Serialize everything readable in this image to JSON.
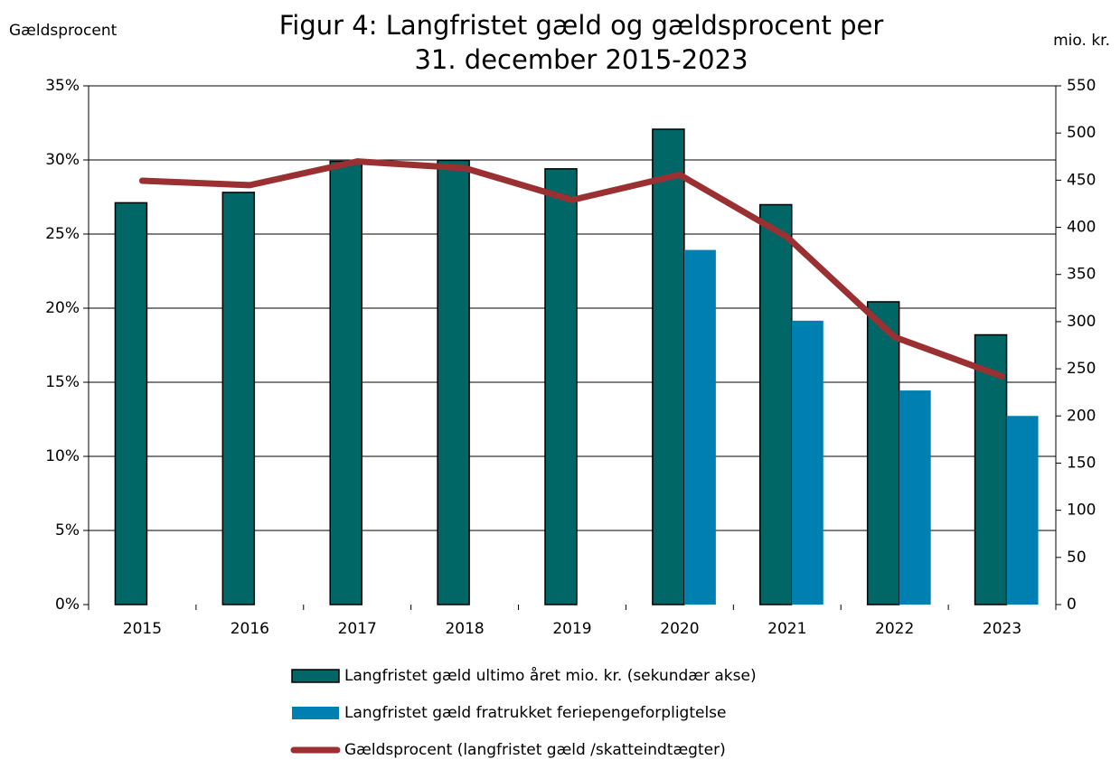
{
  "chart_data": {
    "type": "bar_line",
    "title": [
      "Figur 4: Langfristet gæld og gældsprocent per",
      "31. december 2015-2023"
    ],
    "y_label": "Gældsprocent",
    "y2_label": "mio. kr.",
    "categories": [
      "2015",
      "2016",
      "2017",
      "2018",
      "2019",
      "2020",
      "2021",
      "2022",
      "2023"
    ],
    "series": [
      {
        "name": "Langfristet gæld ultimo året mio. kr. (sekundær akse)",
        "type": "bar",
        "axis": "y2",
        "color": "#006666",
        "values": [
          426,
          437,
          470,
          471,
          462,
          504,
          424,
          321,
          286
        ]
      },
      {
        "name": "Langfristet gæld fratrukket feriepengeforpligtelse",
        "type": "bar",
        "axis": "y2",
        "color": "#0080b0",
        "values": [
          null,
          null,
          null,
          null,
          null,
          376,
          301,
          227,
          200
        ]
      },
      {
        "name": "Gældsprocent (langfristet gæld /skatteindtægter)",
        "type": "line",
        "axis": "y",
        "color": "#9b3033",
        "values": [
          28.6,
          28.3,
          29.9,
          29.45,
          27.3,
          29.0,
          24.8,
          18.05,
          15.4
        ]
      }
    ],
    "ylim": [
      0,
      35
    ],
    "yticks": [
      {
        "value": 0,
        "label": "0%"
      },
      {
        "value": 5,
        "label": "5%"
      },
      {
        "value": 10,
        "label": "10%"
      },
      {
        "value": 15,
        "label": "15%"
      },
      {
        "value": 20,
        "label": "20%"
      },
      {
        "value": 25,
        "label": "25%"
      },
      {
        "value": 30,
        "label": "30%"
      },
      {
        "value": 35,
        "label": "35%"
      }
    ],
    "y2lim": [
      0,
      550
    ],
    "y2ticks": [
      0,
      50,
      100,
      150,
      200,
      250,
      300,
      350,
      400,
      450,
      500,
      550
    ],
    "grid": true,
    "legend": "bottom"
  }
}
